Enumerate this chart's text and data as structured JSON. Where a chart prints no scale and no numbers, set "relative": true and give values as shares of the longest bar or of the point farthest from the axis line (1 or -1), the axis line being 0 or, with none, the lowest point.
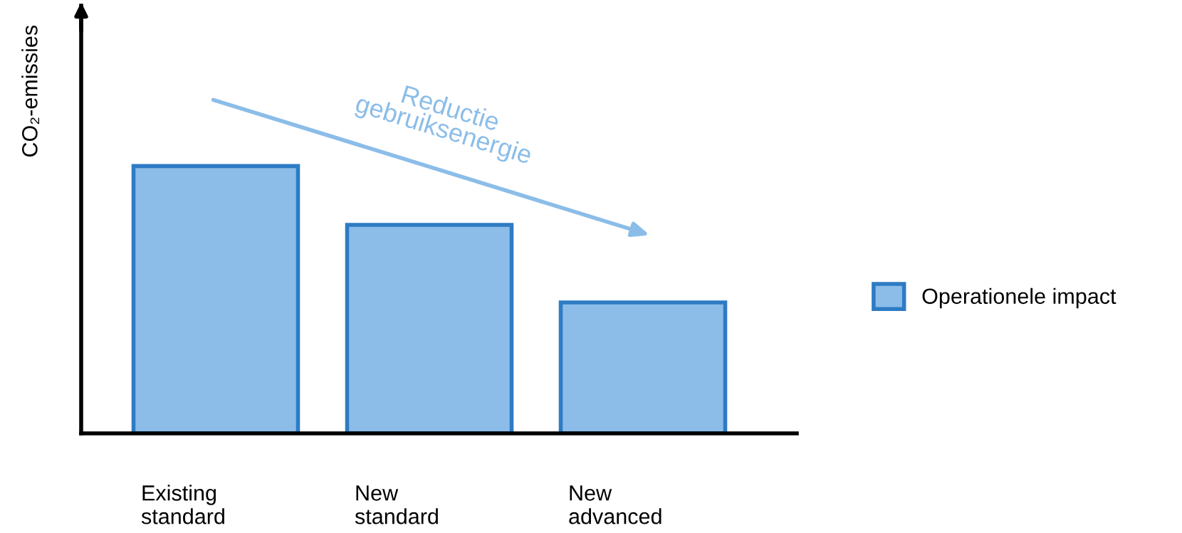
{
  "chart_data": {
    "type": "bar",
    "relative": true,
    "ylabel": "CO₂-emissies",
    "categories": [
      "Existing\nstandard",
      "New\nstandard",
      "New\nadvanced"
    ],
    "series": [
      {
        "name": "Operationele impact",
        "color": "#8bbde8",
        "values": [
          1,
          0.78,
          0.49
        ]
      }
    ],
    "annotations": [
      "Reductie\ngebruiksenergie"
    ],
    "legend": "right",
    "grid": false
  }
}
